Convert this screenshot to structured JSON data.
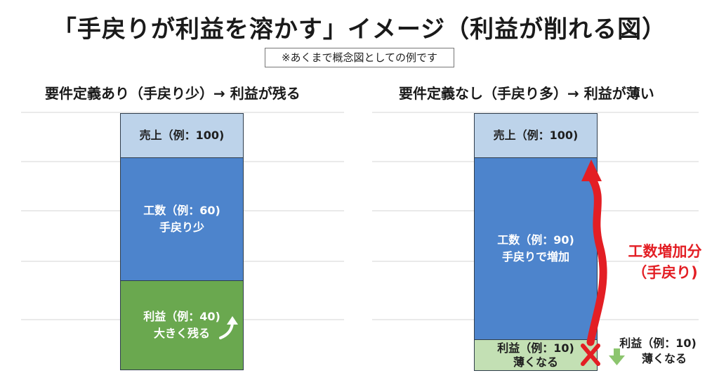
{
  "title": "「手戻りが利益を溶かす」イメージ（利益が削れる図）",
  "note": "※あくまで概念図としての例です",
  "left_panel": {
    "title": "要件定義あり（手戻り少）→ 利益が残る",
    "sales": {
      "line1": "売上（例：100)"
    },
    "cost": {
      "line1": "工数（例：60)",
      "line2": "手戻り少"
    },
    "profit": {
      "line1": "利益（例：40)",
      "line2": "大きく残る"
    }
  },
  "right_panel": {
    "title": "要件定義なし（手戻り多）→ 利益が薄い",
    "sales": {
      "line1": "売上（例：100)"
    },
    "cost": {
      "line1": "工数（例：90)",
      "line2": "手戻りで増加"
    },
    "profit": {
      "line1": "利益（例：10)",
      "line2": "薄くなる"
    },
    "arrow_label": {
      "line1": "工数増加分",
      "line2": "（手戻り)"
    },
    "side_label": {
      "line1": "利益（例：10)",
      "line2": "薄くなる"
    }
  },
  "colors": {
    "sales": "#bdd3ea",
    "cost": "#4d84cc",
    "profit_large": "#6aa84f",
    "profit_small": "#c3e0b4",
    "increase_arrow": "#e31e24",
    "cross_mark": "#e31e24",
    "down_arrow": "#8cc56e",
    "up_arrow": "#ffffff"
  },
  "icons": {
    "up_arrow": "curved-up-arrow-icon",
    "increase_arrow": "red-wavy-up-arrow-icon",
    "cross": "red-x-icon",
    "down_arrow": "green-down-arrow-icon"
  }
}
